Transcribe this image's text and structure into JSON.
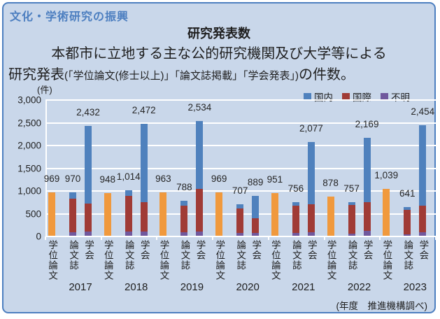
{
  "page": {
    "banner": "文化・学術研究の振興",
    "title": "研究発表数",
    "subtitle_line1": "本都市に立地する主な公的研究機関及び大学等による",
    "subtitle_line2_prefix": "研究発表",
    "subtitle_line2_small": "(「学位論文(修士以上)」「論文誌掲載」「学会発表」)",
    "subtitle_line2_suffix": "の件数。",
    "source_note": "(年度　推進機構調べ)"
  },
  "chart_data": {
    "type": "bar",
    "stacked": true,
    "title": "研究発表数",
    "unit_label": "(件)",
    "ylim": [
      0,
      3000
    ],
    "grid": true,
    "legend_position": "top-right",
    "yticks": [
      {
        "value": 0,
        "label": "0"
      },
      {
        "value": 500,
        "label": "500"
      },
      {
        "value": 1000,
        "label": "1,000"
      },
      {
        "value": 1500,
        "label": "1,500"
      },
      {
        "value": 2000,
        "label": "2,000"
      },
      {
        "value": 2500,
        "label": "2,500"
      },
      {
        "value": 3000,
        "label": "3,000"
      }
    ],
    "legend": [
      {
        "key": "domestic",
        "label": "国内",
        "color": "#4f81bd"
      },
      {
        "key": "international",
        "label": "国際",
        "color": "#a03b36"
      },
      {
        "key": "unknown",
        "label": "不明",
        "color": "#70589d"
      }
    ],
    "colors": {
      "domestic": "#4f81bd",
      "international": "#a03b36",
      "unknown": "#70589d",
      "degree": "#f0993d"
    },
    "bar_categories": [
      {
        "key": "degree",
        "label": "学位論文"
      },
      {
        "key": "journal",
        "label": "論文誌"
      },
      {
        "key": "conference",
        "label": "学会"
      }
    ],
    "segments_estimated": true,
    "groups": [
      {
        "year": "2017",
        "bars": [
          {
            "total": 969,
            "label": "969",
            "segments": [
              {
                "series": "degree",
                "value": 969
              }
            ]
          },
          {
            "total": 970,
            "label": "970",
            "segments": [
              {
                "series": "unknown",
                "value": 100
              },
              {
                "series": "international",
                "value": 730
              },
              {
                "series": "domestic",
                "value": 140
              }
            ]
          },
          {
            "total": 2432,
            "label": "2,432",
            "segments": [
              {
                "series": "unknown",
                "value": 115
              },
              {
                "series": "international",
                "value": 605
              },
              {
                "series": "domestic",
                "value": 1712
              }
            ]
          }
        ]
      },
      {
        "year": "2018",
        "bars": [
          {
            "total": 948,
            "label": "948",
            "segments": [
              {
                "series": "degree",
                "value": 948
              }
            ]
          },
          {
            "total": 1014,
            "label": "1,014",
            "segments": [
              {
                "series": "unknown",
                "value": 115
              },
              {
                "series": "international",
                "value": 775
              },
              {
                "series": "domestic",
                "value": 124
              }
            ]
          },
          {
            "total": 2472,
            "label": "2,472",
            "segments": [
              {
                "series": "unknown",
                "value": 115
              },
              {
                "series": "international",
                "value": 635
              },
              {
                "series": "domestic",
                "value": 1722
              }
            ]
          }
        ]
      },
      {
        "year": "2019",
        "bars": [
          {
            "total": 963,
            "label": "963",
            "segments": [
              {
                "series": "degree",
                "value": 963
              }
            ]
          },
          {
            "total": 788,
            "label": "788",
            "segments": [
              {
                "series": "unknown",
                "value": 90
              },
              {
                "series": "international",
                "value": 590
              },
              {
                "series": "domestic",
                "value": 108
              }
            ]
          },
          {
            "total": 2534,
            "label": "2,534",
            "segments": [
              {
                "series": "unknown",
                "value": 115
              },
              {
                "series": "international",
                "value": 930
              },
              {
                "series": "domestic",
                "value": 1489
              }
            ]
          }
        ]
      },
      {
        "year": "2020",
        "bars": [
          {
            "total": 969,
            "label": "969",
            "segments": [
              {
                "series": "degree",
                "value": 969
              }
            ]
          },
          {
            "total": 707,
            "label": "707",
            "segments": [
              {
                "series": "unknown",
                "value": 70
              },
              {
                "series": "international",
                "value": 549
              },
              {
                "series": "domestic",
                "value": 88
              }
            ]
          },
          {
            "total": 889,
            "label": "889",
            "segments": [
              {
                "series": "unknown",
                "value": 84
              },
              {
                "series": "international",
                "value": 310
              },
              {
                "series": "domestic",
                "value": 495
              }
            ]
          }
        ]
      },
      {
        "year": "2021",
        "bars": [
          {
            "total": 951,
            "label": "951",
            "segments": [
              {
                "series": "degree",
                "value": 951
              }
            ]
          },
          {
            "total": 756,
            "label": "756",
            "segments": [
              {
                "series": "unknown",
                "value": 79
              },
              {
                "series": "international",
                "value": 600
              },
              {
                "series": "domestic",
                "value": 77
              }
            ]
          },
          {
            "total": 2077,
            "label": "2,077",
            "segments": [
              {
                "series": "unknown",
                "value": 96
              },
              {
                "series": "international",
                "value": 619
              },
              {
                "series": "domestic",
                "value": 1362
              }
            ]
          }
        ]
      },
      {
        "year": "2022",
        "bars": [
          {
            "total": 878,
            "label": "878",
            "segments": [
              {
                "series": "degree",
                "value": 878
              }
            ]
          },
          {
            "total": 757,
            "label": "757",
            "segments": [
              {
                "series": "unknown",
                "value": 67
              },
              {
                "series": "international",
                "value": 630
              },
              {
                "series": "domestic",
                "value": 60
              }
            ]
          },
          {
            "total": 2169,
            "label": "2,169",
            "segments": [
              {
                "series": "unknown",
                "value": 125
              },
              {
                "series": "international",
                "value": 635
              },
              {
                "series": "domestic",
                "value": 1409
              }
            ]
          }
        ]
      },
      {
        "year": "2023",
        "bars": [
          {
            "total": 1039,
            "label": "1,039",
            "segments": [
              {
                "series": "degree",
                "value": 1039
              }
            ]
          },
          {
            "total": 641,
            "label": "641",
            "segments": [
              {
                "series": "unknown",
                "value": 39
              },
              {
                "series": "international",
                "value": 540
              },
              {
                "series": "domestic",
                "value": 62
              }
            ]
          },
          {
            "total": 2454,
            "label": "2,454",
            "segments": [
              {
                "series": "unknown",
                "value": 85
              },
              {
                "series": "international",
                "value": 593
              },
              {
                "series": "domestic",
                "value": 1776
              }
            ]
          }
        ]
      }
    ]
  }
}
